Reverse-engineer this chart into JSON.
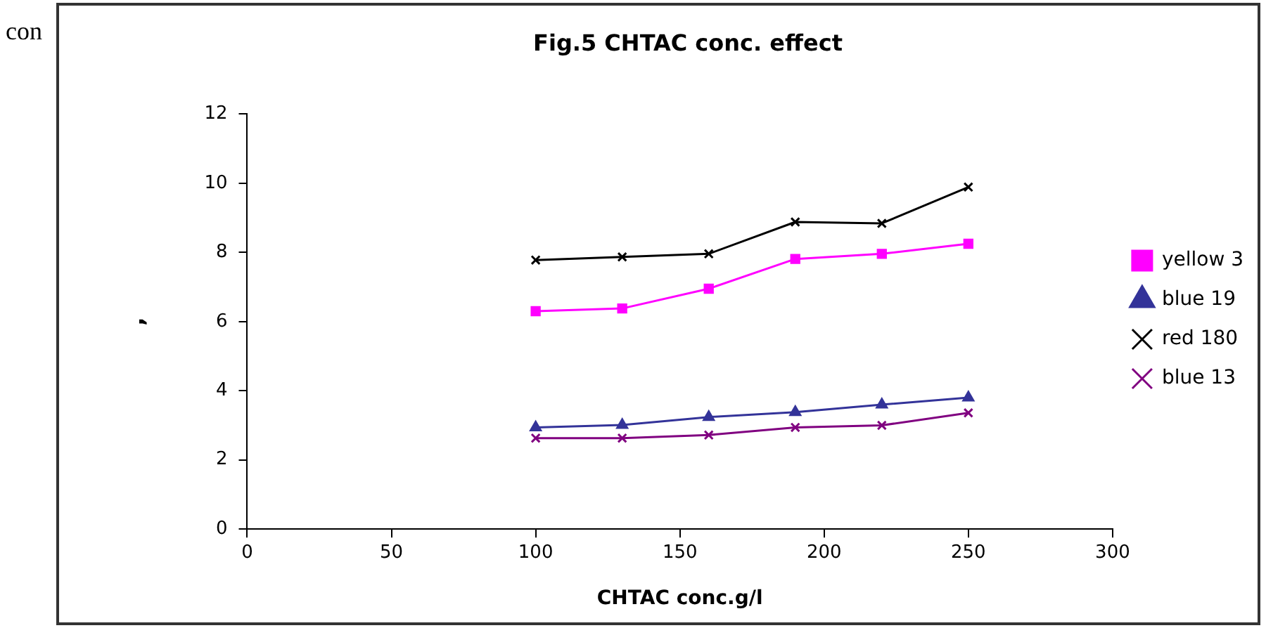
{
  "chart_data": {
    "type": "line",
    "title": "Fig.5 CHTAC conc. effect",
    "xlabel": "CHTAC conc.g/l",
    "ylabel": ",",
    "annotations": [
      "con"
    ],
    "x": [
      100,
      130,
      160,
      190,
      220,
      250
    ],
    "series": [
      {
        "name": "yellow 3",
        "color": "#ff00ff",
        "marker": "square",
        "values": [
          6.3,
          6.38,
          6.95,
          7.81,
          7.96,
          8.25
        ]
      },
      {
        "name": "blue 19",
        "color": "#333399",
        "marker": "triangle",
        "values": [
          2.94,
          3.01,
          3.24,
          3.38,
          3.6,
          3.8
        ]
      },
      {
        "name": "red 180",
        "color": "#000000",
        "marker": "cross",
        "values": [
          7.78,
          7.87,
          7.96,
          8.88,
          8.84,
          9.89
        ]
      },
      {
        "name": "blue 13",
        "color": "#800080",
        "marker": "cross",
        "values": [
          2.63,
          2.63,
          2.72,
          2.94,
          3.0,
          3.36
        ]
      }
    ],
    "xlim": [
      0,
      300
    ],
    "xticks": [
      0,
      50,
      100,
      150,
      200,
      250,
      300
    ],
    "ylim": [
      0,
      12
    ],
    "yticks": [
      0,
      2,
      4,
      6,
      8,
      10,
      12
    ],
    "grid": false,
    "legend": "right",
    "line_style": "solid"
  }
}
